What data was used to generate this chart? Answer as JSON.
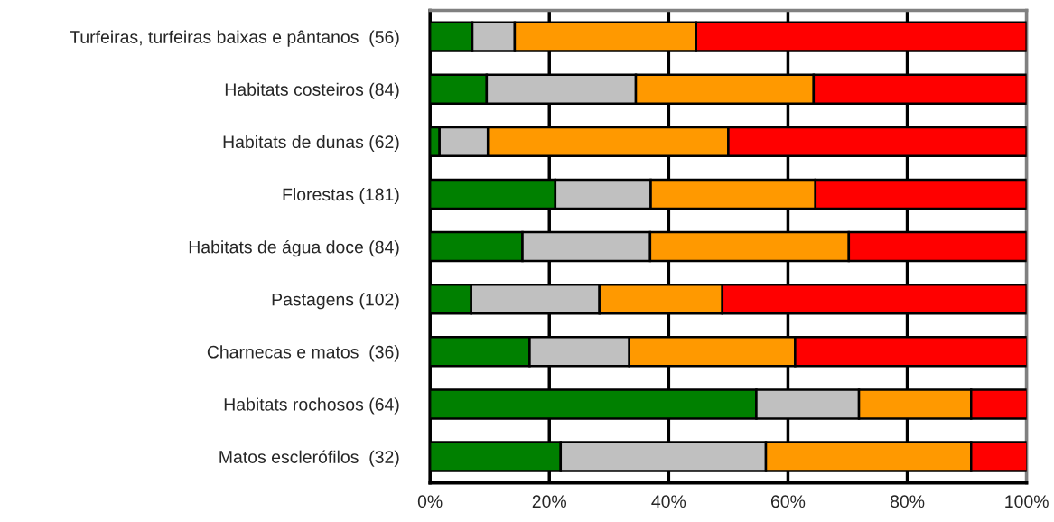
{
  "chart_data": {
    "type": "bar",
    "orientation": "horizontal",
    "stacked": true,
    "categories": [
      "Turfeiras, turfeiras baixas e pântanos  (56)",
      "Habitats costeiros (84)",
      "Habitats de dunas (62)",
      "Florestas (181)",
      "Habitats de água doce (84)",
      "Pastagens (102)",
      "Charnecas e matos  (36)",
      "Habitats rochosos (64)",
      "Matos escleróﬁlos  (32)"
    ],
    "series": [
      {
        "color": "#008000",
        "values": [
          7.1,
          9.5,
          1.6,
          21.0,
          15.5,
          6.9,
          16.7,
          54.7,
          21.9
        ]
      },
      {
        "color": "#c0c0c0",
        "values": [
          7.1,
          25.0,
          8.1,
          16.0,
          21.4,
          21.5,
          16.7,
          17.2,
          34.4
        ]
      },
      {
        "color": "#ff9900",
        "values": [
          30.4,
          29.8,
          40.3,
          27.6,
          33.3,
          20.6,
          27.8,
          18.8,
          34.4
        ]
      },
      {
        "color": "#ff0000",
        "values": [
          55.4,
          35.7,
          50.0,
          35.4,
          29.8,
          51.0,
          38.9,
          9.4,
          9.4
        ]
      }
    ],
    "xlim": [
      0,
      100
    ],
    "xticks": [
      {
        "value": 0,
        "label": "0%"
      },
      {
        "value": 20,
        "label": "20%"
      },
      {
        "value": 40,
        "label": "40%"
      },
      {
        "value": 60,
        "label": "60%"
      },
      {
        "value": 80,
        "label": "80%"
      },
      {
        "value": 100,
        "label": "100%"
      }
    ],
    "grid": "x",
    "legend": false
  }
}
